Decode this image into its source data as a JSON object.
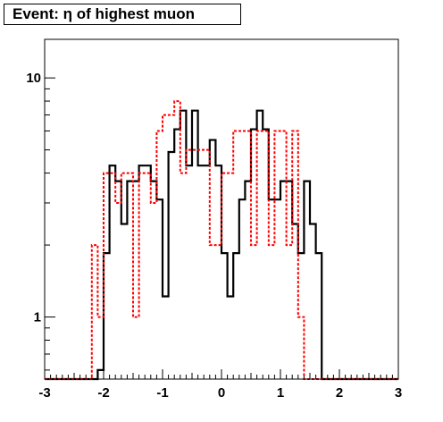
{
  "chart_data": {
    "type": "histogram",
    "title": "Event: η of highest muon",
    "xlabel": "",
    "ylabel": "",
    "xlim": [
      -3,
      3
    ],
    "ylim": [
      0.55,
      14.5
    ],
    "y_scale": "log",
    "bin_width": 0.1,
    "x_ticks": [
      -3,
      -2,
      -1,
      0,
      1,
      2,
      3
    ],
    "x_tick_labels": [
      "-3",
      "-2",
      "-1",
      "0",
      "1",
      "2",
      "3"
    ],
    "y_ticks": [
      1,
      10
    ],
    "y_tick_labels": [
      "1",
      "10"
    ],
    "grid": false,
    "bin_edges": [
      -3.0,
      -2.9,
      -2.8,
      -2.7,
      -2.6,
      -2.5,
      -2.4,
      -2.3,
      -2.2,
      -2.1,
      -2.0,
      -1.9,
      -1.8,
      -1.7,
      -1.6,
      -1.5,
      -1.4,
      -1.3,
      -1.2,
      -1.1,
      -1.0,
      -0.9,
      -0.8,
      -0.7,
      -0.6,
      -0.5,
      -0.4,
      -0.3,
      -0.2,
      -0.1,
      0.0,
      0.1,
      0.2,
      0.3,
      0.4,
      0.5,
      0.6,
      0.7,
      0.8,
      0.9,
      1.0,
      1.1,
      1.2,
      1.3,
      1.4,
      1.5,
      1.6,
      1.7,
      1.8,
      1.9,
      2.0,
      2.1,
      2.2,
      2.3,
      2.4,
      2.5,
      2.6,
      2.7,
      2.8,
      2.9,
      3.0
    ],
    "series": [
      {
        "color": "#000000",
        "style": "solid",
        "values": [
          0,
          0,
          0,
          0,
          0,
          0,
          0,
          0,
          0,
          0.6,
          1.85,
          4.3,
          3.7,
          2.45,
          3.7,
          3.7,
          4.3,
          4.3,
          3.7,
          3.1,
          1.22,
          4.9,
          6.1,
          7.3,
          4.3,
          7.3,
          4.3,
          4.3,
          5.5,
          4.3,
          1.85,
          1.22,
          1.85,
          3.1,
          3.7,
          6.1,
          7.3,
          6.1,
          3.1,
          3.1,
          3.7,
          3.7,
          2.45,
          1.85,
          3.7,
          2.45,
          1.85,
          0,
          0,
          0,
          0,
          0,
          0,
          0,
          0,
          0,
          0,
          0,
          0,
          0
        ]
      },
      {
        "color": "#ff0000",
        "style": "dashed",
        "values": [
          0,
          0,
          0,
          0,
          0,
          0,
          0,
          0,
          2.0,
          1.0,
          4.0,
          4.0,
          3.0,
          4.0,
          4.0,
          1.0,
          4.0,
          4.0,
          3.0,
          6.0,
          7.0,
          7.0,
          8.0,
          4.0,
          5.0,
          5.0,
          5.0,
          5.0,
          2.0,
          2.0,
          4.0,
          4.0,
          6.0,
          6.0,
          6.0,
          2.0,
          6.0,
          6.0,
          2.0,
          6.0,
          6.0,
          2.0,
          6.0,
          1.0,
          0,
          0,
          0,
          0,
          0,
          0,
          0,
          0,
          0,
          0,
          0,
          0,
          0,
          0,
          0,
          0
        ]
      }
    ]
  }
}
